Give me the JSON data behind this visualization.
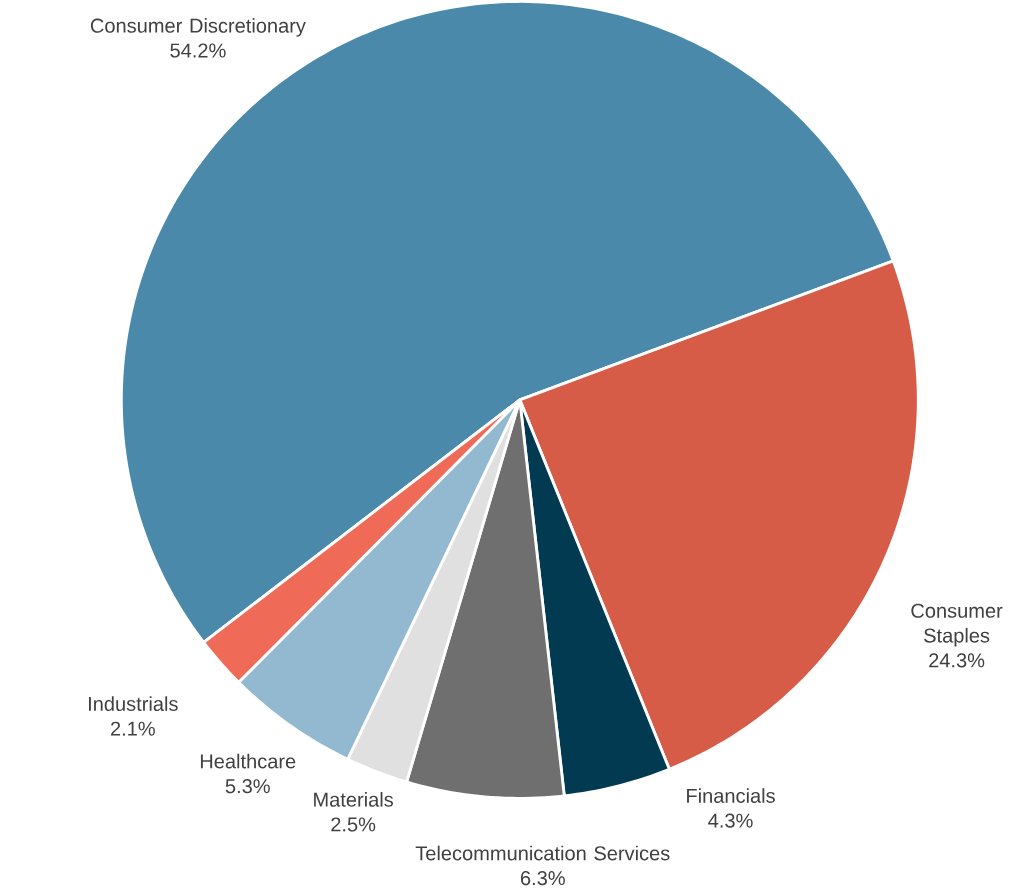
{
  "chart_data": {
    "type": "pie",
    "categories": [
      "Consumer Discretionary",
      "Consumer Staples",
      "Financials",
      "Telecommunication Services",
      "Materials",
      "Healthcare",
      "Industrials"
    ],
    "values": [
      54.2,
      24.3,
      4.3,
      6.3,
      2.5,
      5.3,
      2.1
    ],
    "value_labels": [
      "54.2%",
      "24.3%",
      "4.3%",
      "6.3%",
      "2.5%",
      "5.3%",
      "2.1%"
    ],
    "colors": [
      "#4a89aa",
      "#d65c48",
      "#023a52",
      "#6f6f6f",
      "#e0e0e0",
      "#93b9d1",
      "#ef6a57"
    ]
  }
}
